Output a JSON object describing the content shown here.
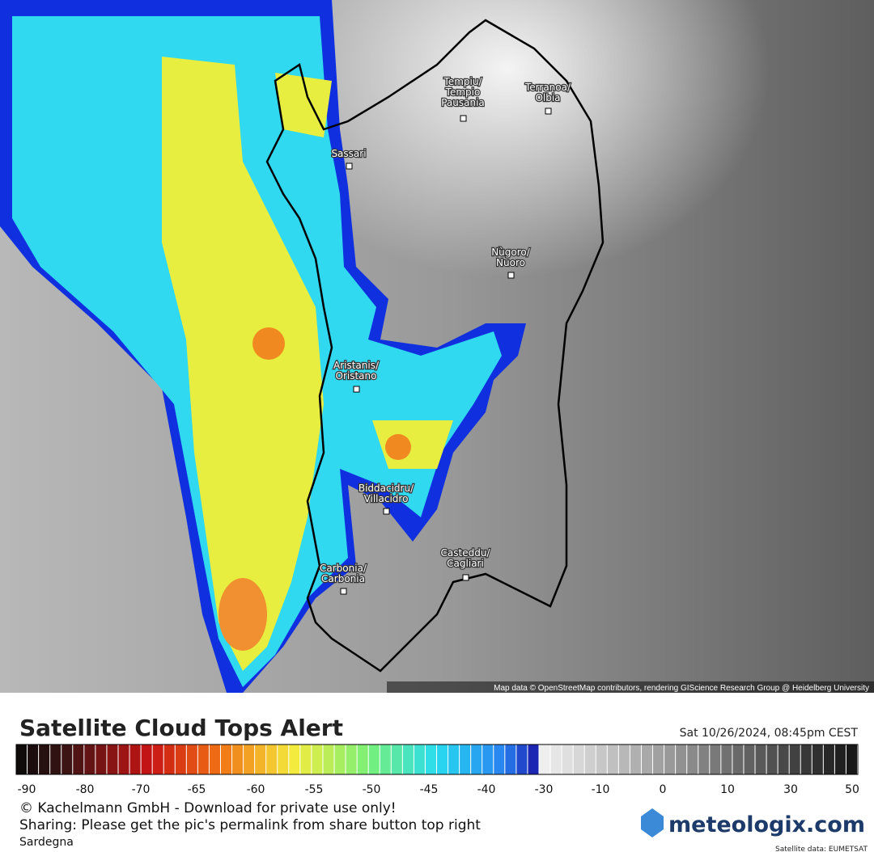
{
  "map": {
    "cities": [
      {
        "lines": [
          "Tempiu/",
          "Tempio",
          "Pausania"
        ]
      },
      {
        "lines": [
          "Terranoa/",
          "Olbia"
        ]
      },
      {
        "lines": [
          "Sassari"
        ]
      },
      {
        "lines": [
          "Nùgoro/",
          "Nuoro"
        ]
      },
      {
        "lines": [
          "Aristanis/",
          "Oristano"
        ]
      },
      {
        "lines": [
          "Biddacidru/",
          "Villacidro"
        ]
      },
      {
        "lines": [
          "Casteddu/",
          "Cagliari"
        ]
      },
      {
        "lines": [
          "Carbonia/",
          "Carbonia"
        ]
      }
    ],
    "attribution": "Map data © OpenStreetMap contributors, rendering GIScience Research Group @ Heidelberg University"
  },
  "footer": {
    "title": "Satellite Cloud Tops Alert",
    "datetime": "Sat 10/26/2024, 08:45pm CEST",
    "legend_ticks": [
      "-90",
      "-80",
      "-70",
      "-65",
      "-60",
      "-55",
      "-50",
      "-45",
      "-40",
      "-30",
      "-10",
      "0",
      "10",
      "30",
      "50"
    ],
    "copyright": "© Kachelmann GmbH - Download for private use only!",
    "sharing": "Sharing: Please get the pic's permalink from share button top right",
    "region": "Sardegna",
    "logo": "meteologix.com",
    "source": "Satellite data: EUMETSAT"
  }
}
